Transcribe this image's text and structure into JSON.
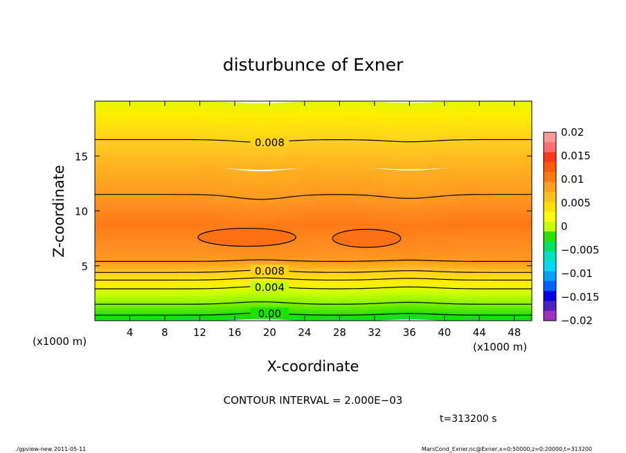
{
  "chart_data": {
    "type": "heatmap",
    "title": "disturbunce of Exner",
    "xlabel": "X-coordinate",
    "ylabel": "Z-coordinate",
    "x_unit_left": "(x1000 m)",
    "x_unit_right": "(x1000 m)",
    "xlim": [
      0,
      50
    ],
    "ylim": [
      0,
      20
    ],
    "x_ticks": [
      "4",
      "8",
      "12",
      "16",
      "20",
      "24",
      "28",
      "32",
      "36",
      "40",
      "44",
      "48"
    ],
    "y_ticks": [
      "5",
      "10",
      "15"
    ],
    "levels": [
      {
        "z": 0.5,
        "value": 0.0,
        "amp": 0.2,
        "label": "0.00"
      },
      {
        "z": 1.5,
        "value": 0.002,
        "amp": 0.22,
        "label": ""
      },
      {
        "z": 2.9,
        "value": 0.004,
        "amp": 0.22,
        "label": "0.004"
      },
      {
        "z": 3.7,
        "value": 0.006,
        "amp": 0.2,
        "label": ""
      },
      {
        "z": 4.4,
        "value": 0.008,
        "amp": 0.2,
        "label": "0.008"
      },
      {
        "z": 5.4,
        "value": 0.01,
        "amp": 0.15,
        "label": ""
      },
      {
        "z": 11.5,
        "value": 0.01,
        "amp": -0.45,
        "label": ""
      },
      {
        "z": 16.5,
        "value": 0.008,
        "amp": -0.25,
        "label": "0.008"
      }
    ],
    "cells": [
      {
        "x0": 11.8,
        "x1": 23.0,
        "z": 7.6,
        "value": 0.012
      },
      {
        "x0": 27.2,
        "x1": 35.0,
        "z": 7.5,
        "value": 0.012
      }
    ],
    "colorbar": {
      "labels": [
        "0.02",
        "0.015",
        "0.01",
        "0.005",
        "0",
        "−0.005",
        "−0.01",
        "−0.015",
        "−0.02"
      ],
      "colors": [
        "#ff9a9a",
        "#ff7070",
        "#ff3a1c",
        "#ff5a10",
        "#ff7a10",
        "#ffa020",
        "#ffc020",
        "#ffe000",
        "#ffff00",
        "#c8ff00",
        "#30e000",
        "#00e060",
        "#00e0c0",
        "#00d8ff",
        "#00a0ff",
        "#0060ff",
        "#0000e0",
        "#5020c0",
        "#a030c0"
      ]
    },
    "annotation": "CONTOUR INTERVAL = 2.000E−03",
    "time_label": "t=313200 s",
    "grid": false
  },
  "footer": {
    "left": "./gpview-new   2011-05-11",
    "right": "MarsCond_Exner.nc@Exner,x=0:50000,z=0:20000,t=313200"
  }
}
